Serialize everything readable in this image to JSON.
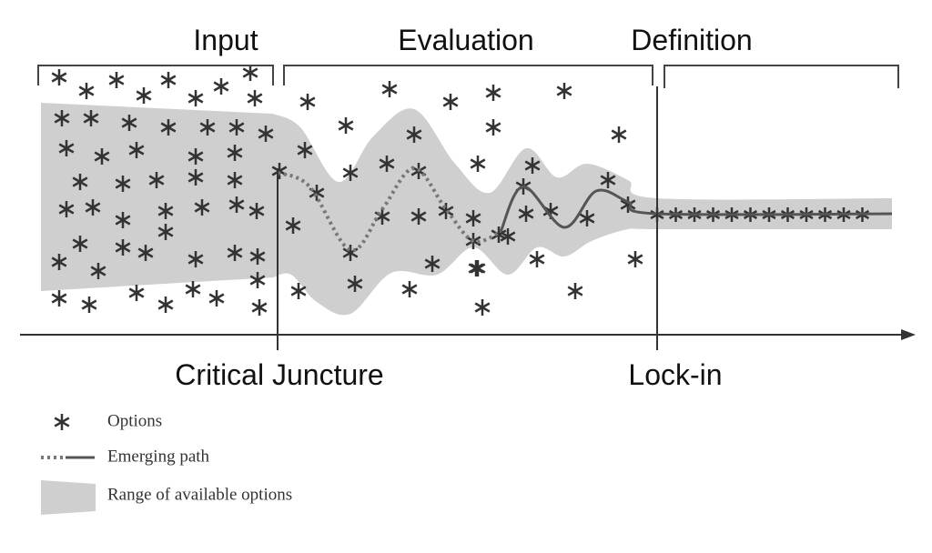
{
  "phases": {
    "input": "Input",
    "evaluation": "Evaluation",
    "definition": "Definition"
  },
  "markers": {
    "critical_juncture": "Critical Juncture",
    "lock_in": "Lock-in"
  },
  "legend": {
    "options": "Options",
    "emerging_path": "Emerging path",
    "range": "Range of available options"
  }
}
